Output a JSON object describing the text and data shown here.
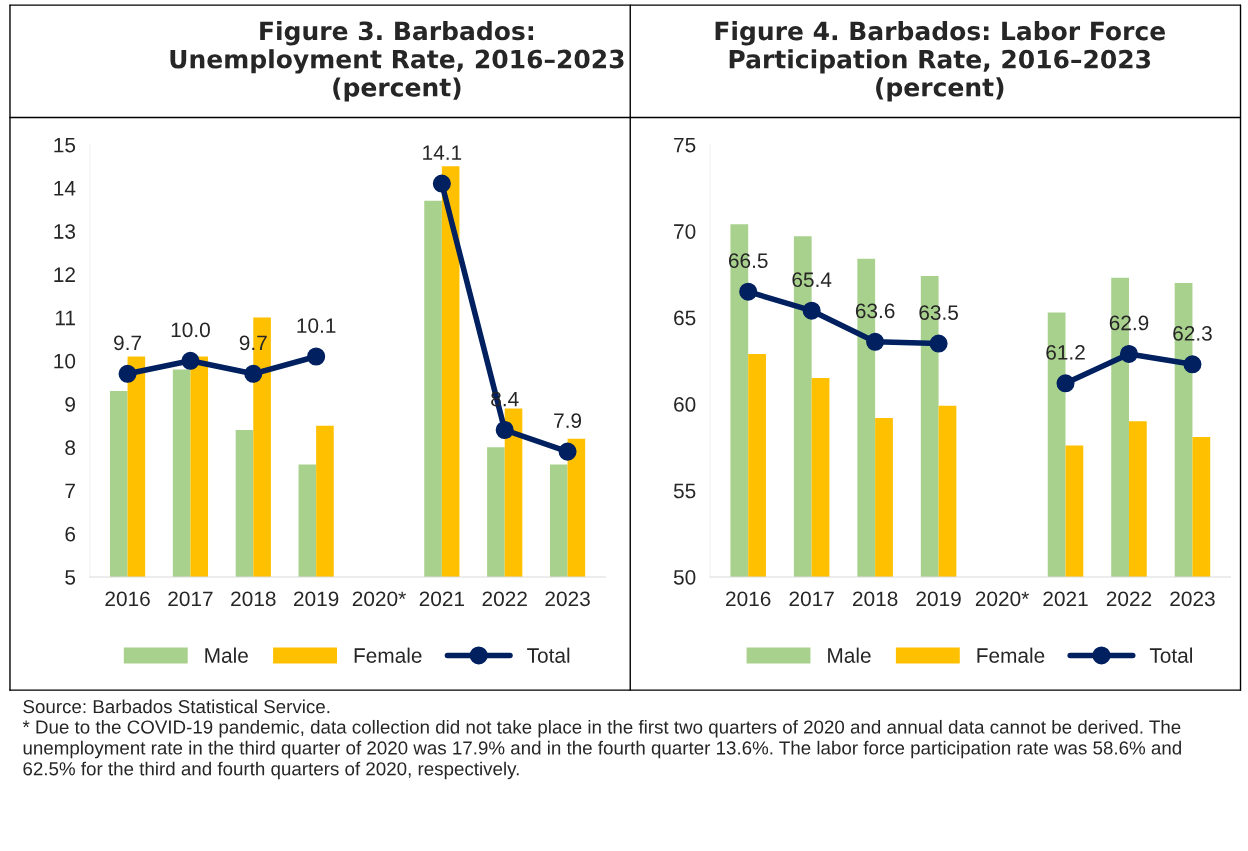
{
  "chart_data": [
    {
      "type": "bar",
      "title": "Figure 3. Barbados: Unemployment Rate, 2016–2023 (percent)",
      "categories": [
        "2016",
        "2017",
        "2018",
        "2019",
        "2020*",
        "2021",
        "2022",
        "2023"
      ],
      "series": [
        {
          "name": "Male",
          "color": "#a9d18e",
          "values": [
            9.3,
            9.8,
            8.4,
            7.6,
            null,
            13.7,
            8.0,
            7.6
          ]
        },
        {
          "name": "Female",
          "color": "#ffc000",
          "values": [
            10.1,
            10.1,
            11.0,
            8.5,
            null,
            14.5,
            8.9,
            8.2
          ]
        },
        {
          "name": "Total",
          "type": "line",
          "color": "#002060",
          "values": [
            9.7,
            10.0,
            9.7,
            10.1,
            null,
            14.1,
            8.4,
            7.9
          ],
          "value_labels": [
            "9.7",
            "10.0",
            "9.7",
            "10.1",
            null,
            "14.1",
            "8.4",
            "7.9"
          ]
        }
      ],
      "ylim": [
        5,
        15
      ],
      "yticks": [
        5,
        6,
        7,
        8,
        9,
        10,
        11,
        12,
        13,
        14,
        15
      ],
      "grid": false,
      "legend": "bottom",
      "marker": "circle",
      "line_style": "solid",
      "annotations": [
        "Source: Barbados Statistical Service.",
        "* Due to the COVID-19 pandemic, data collection did not take place in the first two quarters of 2020 and annual data cannot be derived. The unemployment rate in the third quarter of 2020 was 17.9% and in the fourth quarter 13.6%. The labor force participation rate was 58.6% and 62.5% for the third and fourth quarters of 2020, respectively."
      ]
    },
    {
      "type": "bar",
      "title": "Figure 4. Barbados: Labor Force Participation Rate, 2016–2023 (percent)",
      "categories": [
        "2016",
        "2017",
        "2018",
        "2019",
        "2020*",
        "2021",
        "2022",
        "2023"
      ],
      "series": [
        {
          "name": "Male",
          "color": "#a9d18e",
          "values": [
            70.4,
            69.7,
            68.4,
            67.4,
            null,
            65.3,
            67.3,
            67.0
          ]
        },
        {
          "name": "Female",
          "color": "#ffc000",
          "values": [
            62.9,
            61.5,
            59.2,
            59.9,
            null,
            57.6,
            59.0,
            58.1
          ]
        },
        {
          "name": "Total",
          "type": "line",
          "color": "#002060",
          "values": [
            66.5,
            65.4,
            63.6,
            63.5,
            null,
            61.2,
            62.9,
            62.3
          ],
          "value_labels": [
            "66.5",
            "65.4",
            "63.6",
            "63.5",
            null,
            "61.2",
            "62.9",
            "62.3"
          ]
        }
      ],
      "ylim": [
        50,
        75
      ],
      "yticks": [
        50,
        55,
        60,
        65,
        70,
        75
      ],
      "grid": false,
      "legend": "bottom",
      "marker": "circle",
      "line_style": "solid"
    }
  ]
}
